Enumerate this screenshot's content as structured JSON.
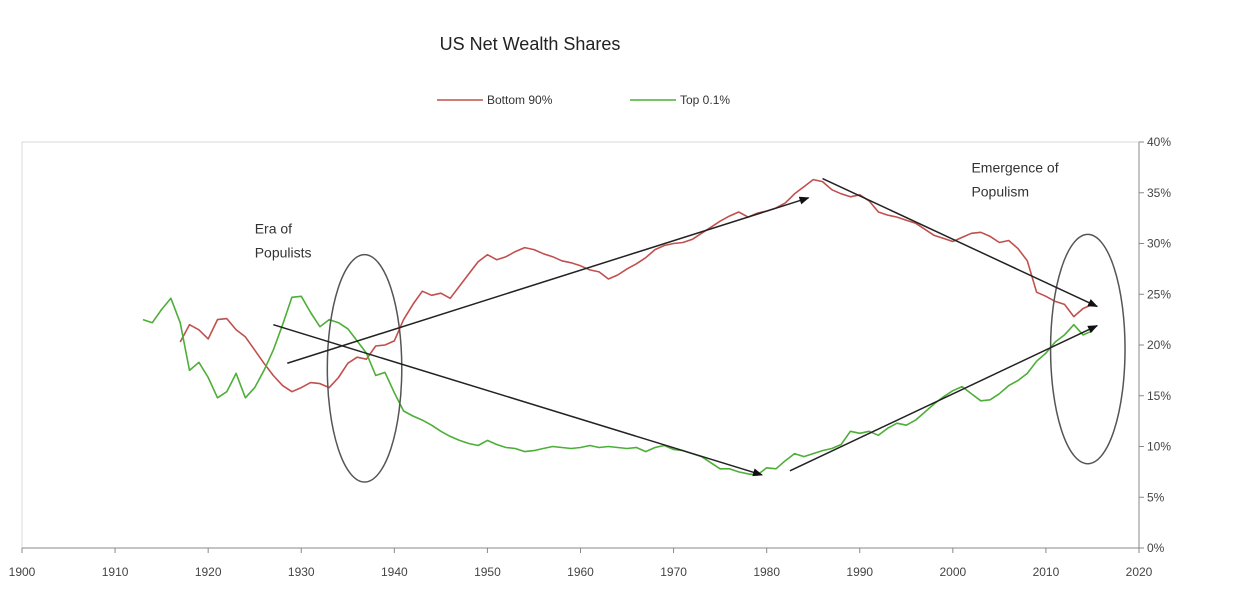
{
  "chart_data": {
    "type": "line",
    "title": "US Net Wealth Shares",
    "xlabel": "",
    "ylabel": "",
    "xlim": [
      1900,
      2020
    ],
    "ylim": [
      0,
      40
    ],
    "x_ticks": [
      "1900",
      "1910",
      "1920",
      "1930",
      "1940",
      "1950",
      "1960",
      "1970",
      "1980",
      "1990",
      "2000",
      "2010",
      "2020"
    ],
    "y_ticks": [
      "0%",
      "5%",
      "10%",
      "15%",
      "20%",
      "25%",
      "30%",
      "35%",
      "40%"
    ],
    "legend_position": "top-center",
    "grid": false,
    "series": [
      {
        "name": "Bottom 90%",
        "color": "#c0504d",
        "points": [
          [
            1917,
            20.3
          ],
          [
            1918,
            22.0
          ],
          [
            1919,
            21.5
          ],
          [
            1920,
            20.6
          ],
          [
            1921,
            22.5
          ],
          [
            1922,
            22.6
          ],
          [
            1923,
            21.5
          ],
          [
            1924,
            20.8
          ],
          [
            1925,
            19.5
          ],
          [
            1926,
            18.2
          ],
          [
            1927,
            17.0
          ],
          [
            1928,
            16.0
          ],
          [
            1929,
            15.4
          ],
          [
            1930,
            15.8
          ],
          [
            1931,
            16.3
          ],
          [
            1932,
            16.2
          ],
          [
            1933,
            15.8
          ],
          [
            1934,
            16.8
          ],
          [
            1935,
            18.2
          ],
          [
            1936,
            18.8
          ],
          [
            1937,
            18.6
          ],
          [
            1938,
            19.9
          ],
          [
            1939,
            20.0
          ],
          [
            1940,
            20.4
          ],
          [
            1941,
            22.5
          ],
          [
            1942,
            24.0
          ],
          [
            1943,
            25.3
          ],
          [
            1944,
            24.9
          ],
          [
            1945,
            25.1
          ],
          [
            1946,
            24.6
          ],
          [
            1947,
            25.8
          ],
          [
            1948,
            27.0
          ],
          [
            1949,
            28.2
          ],
          [
            1950,
            28.9
          ],
          [
            1951,
            28.4
          ],
          [
            1952,
            28.7
          ],
          [
            1953,
            29.2
          ],
          [
            1954,
            29.6
          ],
          [
            1955,
            29.4
          ],
          [
            1956,
            29.0
          ],
          [
            1957,
            28.7
          ],
          [
            1958,
            28.3
          ],
          [
            1959,
            28.1
          ],
          [
            1960,
            27.8
          ],
          [
            1961,
            27.4
          ],
          [
            1962,
            27.2
          ],
          [
            1963,
            26.5
          ],
          [
            1964,
            26.9
          ],
          [
            1965,
            27.5
          ],
          [
            1966,
            28.0
          ],
          [
            1967,
            28.6
          ],
          [
            1968,
            29.4
          ],
          [
            1969,
            29.8
          ],
          [
            1970,
            30.0
          ],
          [
            1971,
            30.1
          ],
          [
            1972,
            30.4
          ],
          [
            1973,
            31.0
          ],
          [
            1974,
            31.6
          ],
          [
            1975,
            32.2
          ],
          [
            1976,
            32.7
          ],
          [
            1977,
            33.1
          ],
          [
            1978,
            32.6
          ],
          [
            1979,
            33.0
          ],
          [
            1980,
            33.2
          ],
          [
            1981,
            33.5
          ],
          [
            1982,
            34.0
          ],
          [
            1983,
            34.9
          ],
          [
            1984,
            35.6
          ],
          [
            1985,
            36.3
          ],
          [
            1986,
            36.1
          ],
          [
            1987,
            35.3
          ],
          [
            1988,
            34.9
          ],
          [
            1989,
            34.6
          ],
          [
            1990,
            34.8
          ],
          [
            1991,
            34.2
          ],
          [
            1992,
            33.1
          ],
          [
            1993,
            32.8
          ],
          [
            1994,
            32.6
          ],
          [
            1995,
            32.3
          ],
          [
            1996,
            32.0
          ],
          [
            1997,
            31.4
          ],
          [
            1998,
            30.8
          ],
          [
            1999,
            30.5
          ],
          [
            2000,
            30.2
          ],
          [
            2001,
            30.6
          ],
          [
            2002,
            31.0
          ],
          [
            2003,
            31.1
          ],
          [
            2004,
            30.7
          ],
          [
            2005,
            30.1
          ],
          [
            2006,
            30.3
          ],
          [
            2007,
            29.5
          ],
          [
            2008,
            28.3
          ],
          [
            2009,
            25.2
          ],
          [
            2010,
            24.8
          ],
          [
            2011,
            24.3
          ],
          [
            2012,
            24.0
          ],
          [
            2013,
            22.8
          ],
          [
            2014,
            23.6
          ],
          [
            2015,
            24.0
          ]
        ]
      },
      {
        "name": "Top 0.1%",
        "color": "#4caf37",
        "points": [
          [
            1913,
            22.5
          ],
          [
            1914,
            22.2
          ],
          [
            1915,
            23.5
          ],
          [
            1916,
            24.6
          ],
          [
            1917,
            22.2
          ],
          [
            1918,
            17.5
          ],
          [
            1919,
            18.3
          ],
          [
            1920,
            16.8
          ],
          [
            1921,
            14.8
          ],
          [
            1922,
            15.4
          ],
          [
            1923,
            17.2
          ],
          [
            1924,
            14.8
          ],
          [
            1925,
            15.8
          ],
          [
            1926,
            17.5
          ],
          [
            1927,
            19.5
          ],
          [
            1928,
            22.0
          ],
          [
            1929,
            24.7
          ],
          [
            1930,
            24.8
          ],
          [
            1931,
            23.2
          ],
          [
            1932,
            21.8
          ],
          [
            1933,
            22.5
          ],
          [
            1934,
            22.2
          ],
          [
            1935,
            21.6
          ],
          [
            1936,
            20.4
          ],
          [
            1937,
            19.2
          ],
          [
            1938,
            17.0
          ],
          [
            1939,
            17.3
          ],
          [
            1940,
            15.3
          ],
          [
            1941,
            13.5
          ],
          [
            1942,
            13.0
          ],
          [
            1943,
            12.6
          ],
          [
            1944,
            12.1
          ],
          [
            1945,
            11.5
          ],
          [
            1946,
            11.0
          ],
          [
            1947,
            10.6
          ],
          [
            1948,
            10.3
          ],
          [
            1949,
            10.1
          ],
          [
            1950,
            10.6
          ],
          [
            1951,
            10.2
          ],
          [
            1952,
            9.9
          ],
          [
            1953,
            9.8
          ],
          [
            1954,
            9.5
          ],
          [
            1955,
            9.6
          ],
          [
            1956,
            9.8
          ],
          [
            1957,
            10.0
          ],
          [
            1958,
            9.9
          ],
          [
            1959,
            9.8
          ],
          [
            1960,
            9.9
          ],
          [
            1961,
            10.1
          ],
          [
            1962,
            9.9
          ],
          [
            1963,
            10.0
          ],
          [
            1964,
            9.9
          ],
          [
            1965,
            9.8
          ],
          [
            1966,
            9.9
          ],
          [
            1967,
            9.5
          ],
          [
            1968,
            9.9
          ],
          [
            1969,
            10.1
          ],
          [
            1970,
            9.7
          ],
          [
            1971,
            9.6
          ],
          [
            1972,
            9.3
          ],
          [
            1973,
            9.0
          ],
          [
            1974,
            8.4
          ],
          [
            1975,
            7.8
          ],
          [
            1976,
            7.8
          ],
          [
            1977,
            7.5
          ],
          [
            1978,
            7.3
          ],
          [
            1979,
            7.2
          ],
          [
            1980,
            7.9
          ],
          [
            1981,
            7.8
          ],
          [
            1982,
            8.6
          ],
          [
            1983,
            9.3
          ],
          [
            1984,
            9.0
          ],
          [
            1985,
            9.3
          ],
          [
            1986,
            9.6
          ],
          [
            1987,
            9.8
          ],
          [
            1988,
            10.2
          ],
          [
            1989,
            11.5
          ],
          [
            1990,
            11.3
          ],
          [
            1991,
            11.5
          ],
          [
            1992,
            11.1
          ],
          [
            1993,
            11.8
          ],
          [
            1994,
            12.3
          ],
          [
            1995,
            12.1
          ],
          [
            1996,
            12.6
          ],
          [
            1997,
            13.4
          ],
          [
            1998,
            14.2
          ],
          [
            1999,
            14.9
          ],
          [
            2000,
            15.5
          ],
          [
            2001,
            15.9
          ],
          [
            2002,
            15.2
          ],
          [
            2003,
            14.5
          ],
          [
            2004,
            14.6
          ],
          [
            2005,
            15.2
          ],
          [
            2006,
            16.0
          ],
          [
            2007,
            16.5
          ],
          [
            2008,
            17.2
          ],
          [
            2009,
            18.4
          ],
          [
            2010,
            19.2
          ],
          [
            2011,
            20.3
          ],
          [
            2012,
            21.0
          ],
          [
            2013,
            22.0
          ],
          [
            2014,
            21.0
          ],
          [
            2015,
            21.4
          ]
        ]
      }
    ],
    "annotations": [
      {
        "name": "era-of-populists",
        "lines": [
          "Era of",
          "Populists"
        ],
        "x": 1925,
        "y": 31
      },
      {
        "name": "emergence-of-populism",
        "lines": [
          "Emergence of",
          "Populism"
        ],
        "x": 2002,
        "y": 37
      }
    ],
    "arrows": [
      {
        "name": "arrow-bottom90-rise",
        "from": [
          1928.5,
          18.2
        ],
        "to": [
          1984.5,
          34.5
        ]
      },
      {
        "name": "arrow-top01-fall",
        "from": [
          1927,
          22.0
        ],
        "to": [
          1979.5,
          7.2
        ]
      },
      {
        "name": "arrow-bottom90-fall",
        "from": [
          1986,
          36.4
        ],
        "to": [
          2015.5,
          23.8
        ]
      },
      {
        "name": "arrow-top01-rise",
        "from": [
          1982.5,
          7.6
        ],
        "to": [
          2015.5,
          21.9
        ]
      }
    ],
    "ellipses": [
      {
        "name": "ellipse-1930s",
        "cx": 1936.8,
        "cy": 17.7,
        "rx": 4.0,
        "ry": 11.2
      },
      {
        "name": "ellipse-2010s",
        "cx": 2014.5,
        "cy": 19.6,
        "rx": 4.0,
        "ry": 11.3
      }
    ]
  }
}
